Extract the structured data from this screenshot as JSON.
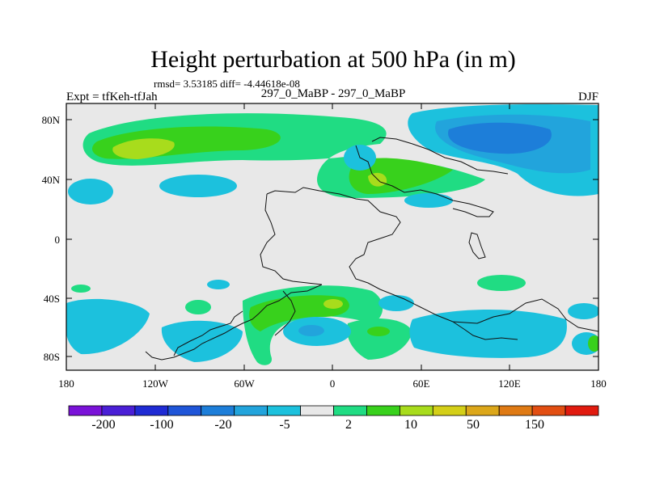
{
  "title": "Height perturbation at 500 hPa (in m)",
  "stats_line": "rmsd= 3.53185 diff= -4.44618e-08",
  "left_label": "Expt = tfKeh-tfJah",
  "center_label": "297_0_MaBP - 297_0_MaBP",
  "right_label": "DJF",
  "map": {
    "lat_ticks": [
      "80N",
      "40N",
      "0",
      "40S",
      "80S"
    ],
    "lon_ticks": [
      "180",
      "120W",
      "60W",
      "0",
      "60E",
      "120E",
      "180"
    ],
    "background_color": "#e8e8e8"
  },
  "colorbar": {
    "colors": [
      "#7a12d8",
      "#4a1fd6",
      "#1f2bd4",
      "#1f55d8",
      "#1d7ed9",
      "#22a4dc",
      "#1cc1dd",
      "#e8e8e8",
      "#20dc83",
      "#38d11c",
      "#a8dc1c",
      "#d4cf18",
      "#dca71a",
      "#df7a14",
      "#e24e12",
      "#e11b0f"
    ],
    "labels": [
      "-200",
      "-100",
      "-20",
      "-5",
      "2",
      "10",
      "50",
      "150"
    ]
  }
}
